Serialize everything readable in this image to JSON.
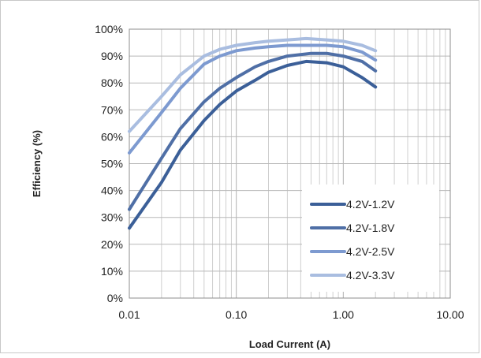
{
  "chart_data": {
    "type": "line",
    "title": "",
    "xlabel": "Load Current (A)",
    "ylabel": "Efficiency (%)",
    "x_scale": "log",
    "xlim": [
      0.01,
      10
    ],
    "ylim": [
      0,
      100
    ],
    "grid": true,
    "legend_position": "bottom-right",
    "x_ticks": [
      0.01,
      0.1,
      1,
      10
    ],
    "x_tick_labels": [
      "0.01",
      "0.10",
      "1.00",
      "10.00"
    ],
    "y_ticks": [
      0,
      10,
      20,
      30,
      40,
      50,
      60,
      70,
      80,
      90,
      100
    ],
    "y_tick_labels": [
      "0%",
      "10%",
      "20%",
      "30%",
      "40%",
      "50%",
      "60%",
      "70%",
      "80%",
      "90%",
      "100%"
    ],
    "series": [
      {
        "name": "4.2V-1.2V",
        "color": "#3b5f98",
        "x": [
          0.01,
          0.02,
          0.03,
          0.05,
          0.07,
          0.1,
          0.15,
          0.2,
          0.3,
          0.45,
          0.7,
          1.0,
          1.5,
          2.0
        ],
        "y": [
          26,
          43,
          55,
          66,
          72,
          77,
          81,
          84,
          86.5,
          88,
          87.5,
          86,
          82,
          78.5
        ]
      },
      {
        "name": "4.2V-1.8V",
        "color": "#4f6fa6",
        "x": [
          0.01,
          0.02,
          0.03,
          0.05,
          0.07,
          0.1,
          0.15,
          0.2,
          0.3,
          0.5,
          0.7,
          1.0,
          1.5,
          2.0
        ],
        "y": [
          33,
          52,
          63,
          73,
          78,
          82,
          86,
          88,
          90,
          91,
          91,
          90,
          88,
          84.5
        ]
      },
      {
        "name": "4.2V-2.5V",
        "color": "#7d9ad0",
        "x": [
          0.01,
          0.02,
          0.03,
          0.05,
          0.07,
          0.1,
          0.15,
          0.2,
          0.3,
          0.5,
          0.7,
          1.0,
          1.5,
          2.0
        ],
        "y": [
          54,
          69,
          78,
          87,
          90,
          92,
          93,
          93.5,
          94,
          94,
          94,
          93.5,
          91.5,
          88.5
        ]
      },
      {
        "name": "4.2V-3.3V",
        "color": "#a9bde0",
        "x": [
          0.01,
          0.02,
          0.03,
          0.05,
          0.07,
          0.1,
          0.15,
          0.2,
          0.3,
          0.45,
          0.7,
          1.0,
          1.5,
          2.0
        ],
        "y": [
          62,
          75,
          83,
          90,
          92.5,
          94,
          95,
          95.5,
          96,
          96.5,
          96,
          95.5,
          94,
          92
        ]
      }
    ]
  }
}
